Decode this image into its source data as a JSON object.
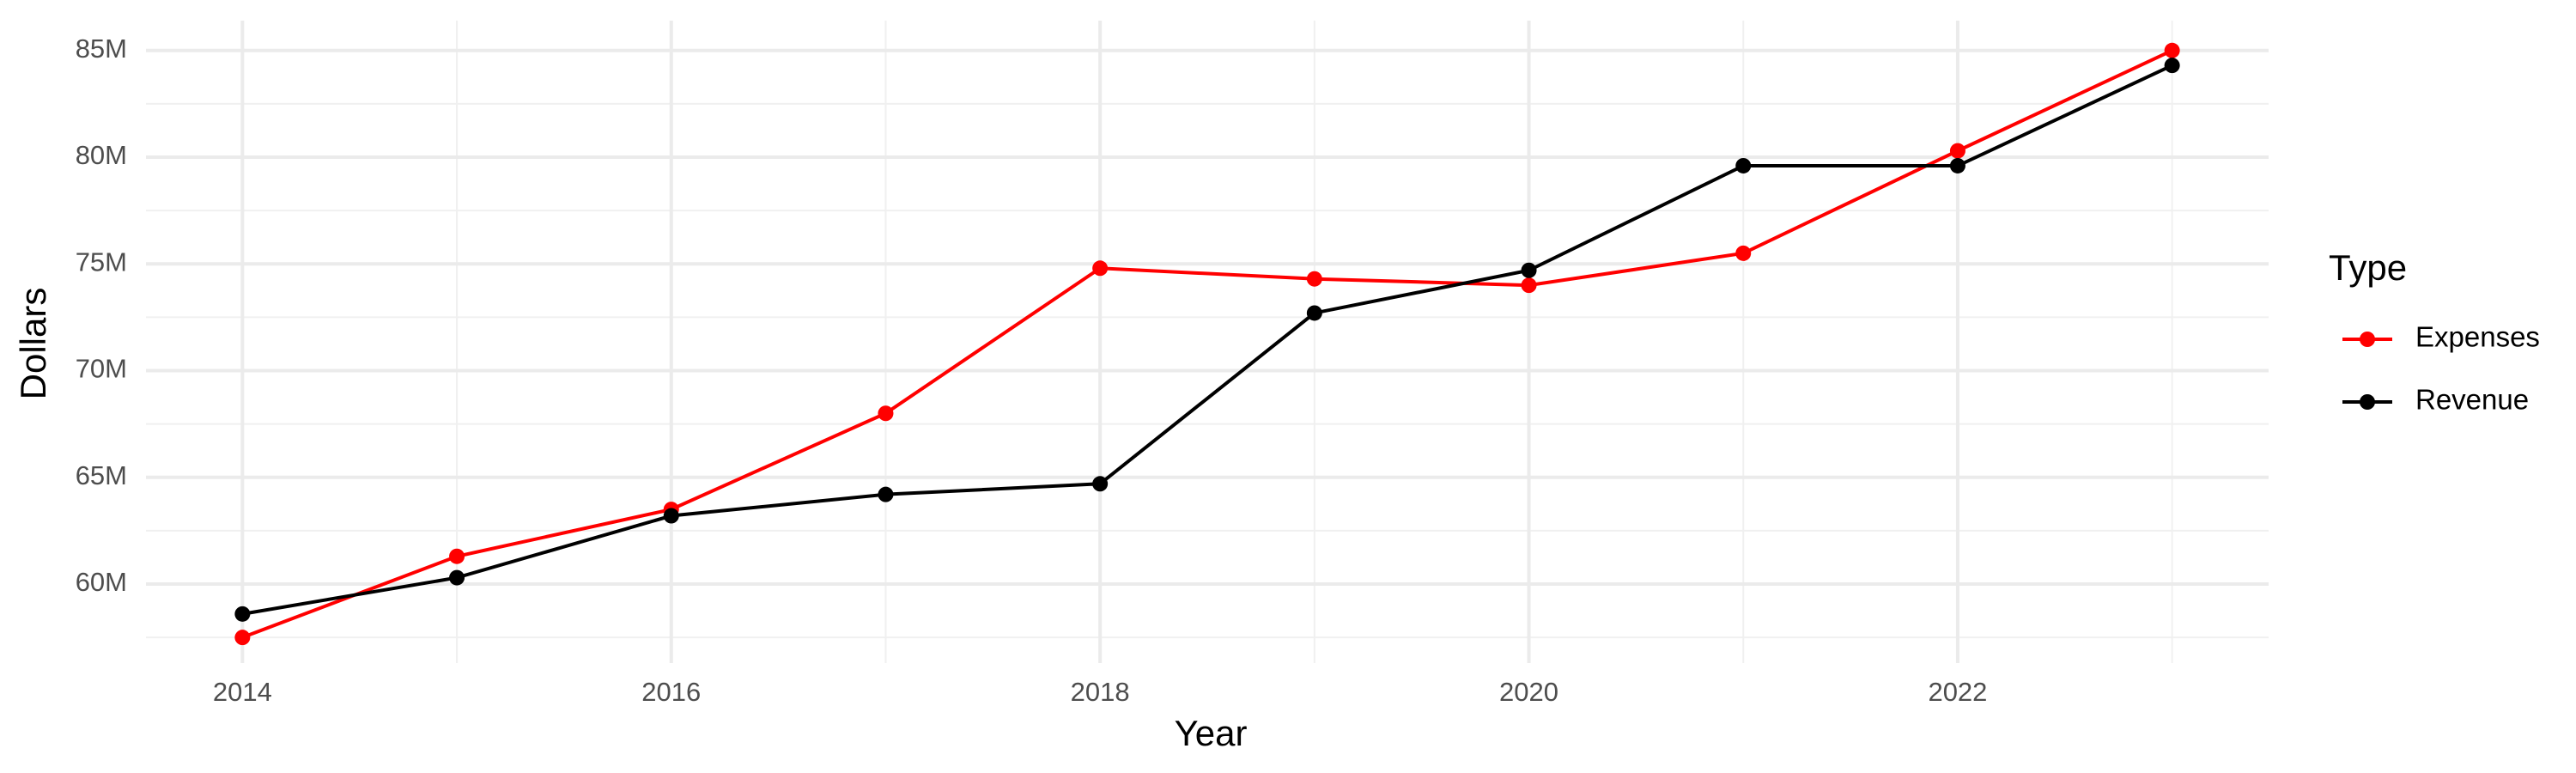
{
  "chart_data": {
    "type": "line",
    "x_label": "Year",
    "y_label": "Dollars",
    "x": [
      2014,
      2015,
      2016,
      2017,
      2018,
      2019,
      2020,
      2021,
      2022,
      2023
    ],
    "series": [
      {
        "name": "Expenses",
        "color": "#ff0000",
        "values": [
          57500000,
          61300000,
          63500000,
          68000000,
          74800000,
          74300000,
          74000000,
          75500000,
          80300000,
          85000000
        ]
      },
      {
        "name": "Revenue",
        "color": "#000000",
        "values": [
          58600000,
          60300000,
          63200000,
          64200000,
          64700000,
          72700000,
          74700000,
          79600000,
          79600000,
          84300000
        ]
      }
    ],
    "xlim": [
      2013.55,
      2023.45
    ],
    "xticks": [
      2014,
      2016,
      2018,
      2020,
      2022
    ],
    "ylim": [
      56300000,
      86400000
    ],
    "yticks": [
      {
        "value": 60000000,
        "label": "60M"
      },
      {
        "value": 65000000,
        "label": "65M"
      },
      {
        "value": 70000000,
        "label": "70M"
      },
      {
        "value": 75000000,
        "label": "75M"
      },
      {
        "value": 80000000,
        "label": "80M"
      },
      {
        "value": 85000000,
        "label": "85M"
      }
    ],
    "grid": true,
    "legend_title": "Type",
    "legend_position": "right"
  }
}
